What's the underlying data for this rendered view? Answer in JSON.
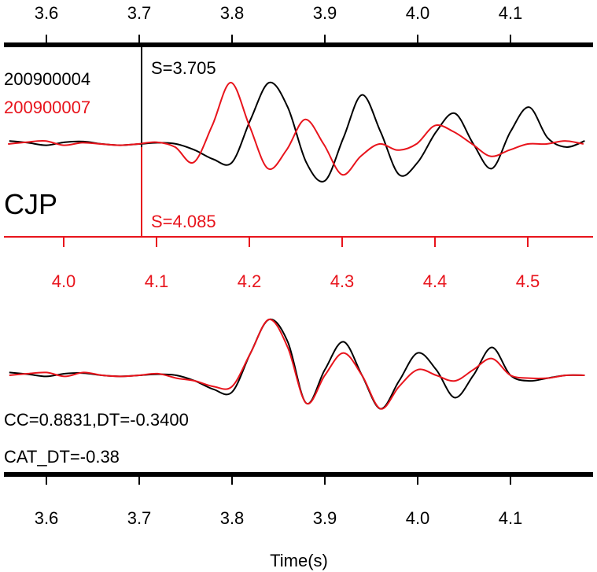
{
  "chart_data": [
    {
      "type": "line",
      "name": "top-panel-overlay",
      "station": "CJP",
      "top_axis": {
        "ticks": [
          3.6,
          3.7,
          3.8,
          3.9,
          4.0,
          4.1
        ],
        "tick_labels": [
          "3.6",
          "3.7",
          "3.8",
          "3.9",
          "4.0",
          "4.1"
        ]
      },
      "bottom_axis": {
        "ticks": [
          4.0,
          4.1,
          4.2,
          4.3,
          4.4,
          4.5
        ],
        "tick_labels": [
          "4.0",
          "4.1",
          "4.2",
          "4.3",
          "4.4",
          "4.5"
        ]
      },
      "series": [
        {
          "name": "200900004",
          "color": "#000000",
          "pick_label": "S=3.705",
          "pick_time": 3.705,
          "x": [
            3.56,
            3.58,
            3.6,
            3.62,
            3.64,
            3.66,
            3.68,
            3.7,
            3.72,
            3.74,
            3.76,
            3.78,
            3.8,
            3.82,
            3.84,
            3.86,
            3.88,
            3.9,
            3.92,
            3.94,
            3.96,
            3.98,
            4.0,
            4.02,
            4.04,
            4.06,
            4.08,
            4.1,
            4.12,
            4.14,
            4.16,
            4.18
          ],
          "y": [
            0.05,
            0.02,
            -0.02,
            0.03,
            0.04,
            0.0,
            -0.02,
            0.0,
            0.02,
            0.0,
            -0.1,
            -0.25,
            -0.3,
            0.4,
            1.0,
            0.6,
            -0.3,
            -0.6,
            0.1,
            0.8,
            0.2,
            -0.5,
            -0.3,
            0.2,
            0.5,
            0.0,
            -0.4,
            0.2,
            0.6,
            0.1,
            -0.05,
            0.05
          ]
        },
        {
          "name": "200900007",
          "color": "#e8141c",
          "pick_label": "S=4.085",
          "pick_time": 4.085,
          "x": [
            3.94,
            3.96,
            3.98,
            4.0,
            4.02,
            4.04,
            4.06,
            4.08,
            4.1,
            4.12,
            4.14,
            4.16,
            4.18,
            4.2,
            4.22,
            4.24,
            4.26,
            4.28,
            4.3,
            4.32,
            4.34,
            4.36,
            4.38,
            4.4,
            4.42,
            4.44,
            4.46,
            4.48,
            4.5,
            4.52,
            4.54,
            4.56
          ],
          "y": [
            0.0,
            0.03,
            0.05,
            -0.02,
            0.02,
            0.0,
            -0.02,
            0.0,
            0.03,
            -0.05,
            -0.3,
            0.3,
            1.0,
            0.3,
            -0.4,
            -0.1,
            0.4,
            0.0,
            -0.5,
            -0.2,
            0.0,
            -0.1,
            0.0,
            0.3,
            0.2,
            0.0,
            -0.2,
            -0.1,
            0.0,
            0.0,
            0.05,
            0.0
          ]
        }
      ]
    },
    {
      "type": "line",
      "name": "bottom-panel-aligned",
      "xlabel": "Time(s)",
      "x_ticks": [
        3.6,
        3.7,
        3.8,
        3.9,
        4.0,
        4.1
      ],
      "x_tick_labels": [
        "3.6",
        "3.7",
        "3.8",
        "3.9",
        "4.0",
        "4.1"
      ],
      "annotations": [
        "CC=0.8831,DT=-0.3400",
        "CAT_DT=-0.38"
      ],
      "series": [
        {
          "name": "200900004",
          "color": "#000000",
          "x": [
            3.56,
            3.58,
            3.6,
            3.62,
            3.64,
            3.66,
            3.68,
            3.7,
            3.72,
            3.74,
            3.76,
            3.78,
            3.8,
            3.82,
            3.84,
            3.86,
            3.88,
            3.9,
            3.92,
            3.94,
            3.96,
            3.98,
            4.0,
            4.02,
            4.04,
            4.06,
            4.08,
            4.1,
            4.12,
            4.14,
            4.16,
            4.18
          ],
          "y": [
            0.05,
            0.02,
            -0.02,
            0.03,
            0.04,
            0.0,
            -0.02,
            0.0,
            0.02,
            0.0,
            -0.1,
            -0.25,
            -0.3,
            0.4,
            1.0,
            0.6,
            -0.5,
            0.1,
            0.6,
            0.0,
            -0.6,
            -0.1,
            0.4,
            0.1,
            -0.4,
            0.0,
            0.5,
            0.0,
            -0.1,
            -0.05,
            0.0,
            0.0
          ]
        },
        {
          "name": "200900007",
          "color": "#e8141c",
          "x": [
            3.56,
            3.58,
            3.6,
            3.62,
            3.64,
            3.66,
            3.68,
            3.7,
            3.72,
            3.74,
            3.76,
            3.78,
            3.8,
            3.82,
            3.84,
            3.86,
            3.88,
            3.9,
            3.92,
            3.94,
            3.96,
            3.98,
            4.0,
            4.02,
            4.04,
            4.06,
            4.08,
            4.1,
            4.12,
            4.14,
            4.16,
            4.18
          ],
          "y": [
            0.0,
            0.03,
            0.05,
            -0.02,
            0.05,
            0.0,
            -0.02,
            0.0,
            0.03,
            -0.05,
            -0.1,
            -0.2,
            -0.2,
            0.4,
            1.0,
            0.5,
            -0.5,
            0.0,
            0.4,
            0.0,
            -0.6,
            -0.2,
            0.1,
            0.0,
            -0.1,
            0.1,
            0.3,
            0.0,
            -0.05,
            -0.05,
            0.0,
            0.0
          ]
        }
      ]
    }
  ],
  "colors": {
    "black": "#000000",
    "red": "#e8141c"
  }
}
